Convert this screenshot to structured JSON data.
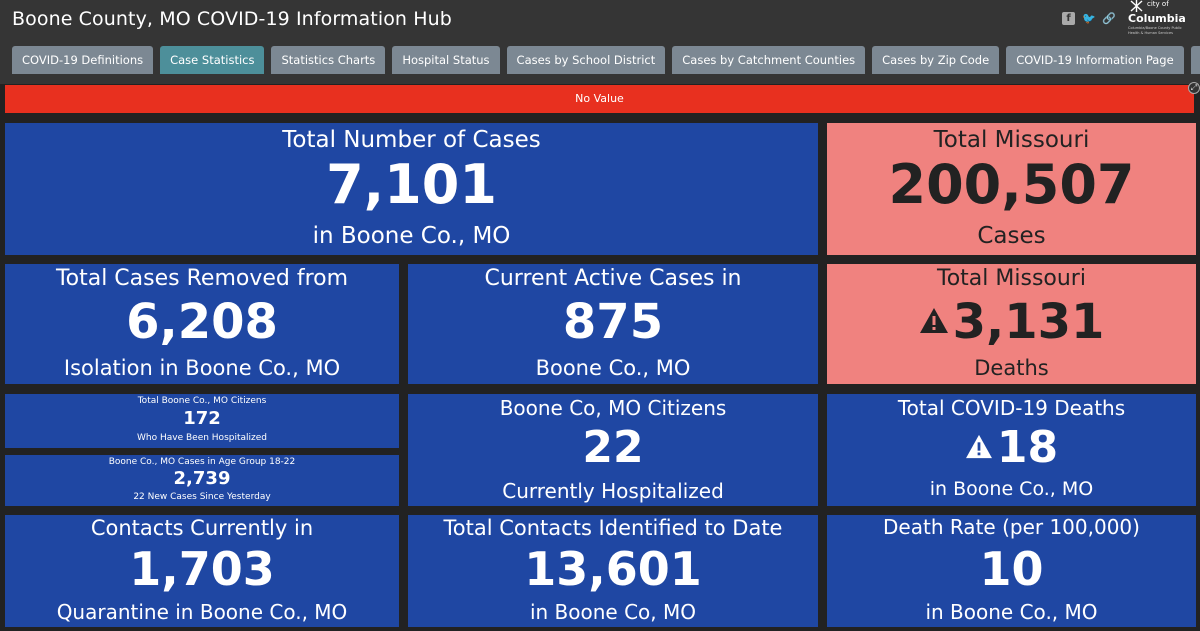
{
  "header": {
    "title": "Boone County, MO COVID-19 Information Hub",
    "social": {
      "facebook": "f",
      "twitter": "🐦",
      "link": "🔗"
    },
    "logo": {
      "city_of": "city of",
      "name": "Columbia",
      "subtitle": "Columbia/Boone County Public Health & Human Services"
    }
  },
  "tabs": [
    {
      "label": "COVID-19 Definitions"
    },
    {
      "label": "Case Statistics"
    },
    {
      "label": "Statistics Charts"
    },
    {
      "label": "Hospital Status"
    },
    {
      "label": "Cases by School District"
    },
    {
      "label": "Cases by Catchment Counties"
    },
    {
      "label": "Cases by Zip Code"
    },
    {
      "label": "COVID-19 Information Page"
    },
    {
      "label": "☰"
    }
  ],
  "alert": {
    "text": "No Value"
  },
  "cards": {
    "total_cases": {
      "top": "Total Number of Cases",
      "value": "7,101",
      "bottom": "in Boone Co., MO"
    },
    "total_missouri_cases": {
      "top": "Total Missouri",
      "value": "200,507",
      "bottom": "Cases"
    },
    "removed": {
      "top": "Total Cases Removed from",
      "value": "6,208",
      "bottom": "Isolation in Boone Co., MO"
    },
    "active": {
      "top": "Current Active Cases in",
      "value": "875",
      "bottom": "Boone Co., MO"
    },
    "missouri_deaths": {
      "top": "Total Missouri",
      "value": "3,131",
      "bottom": "Deaths"
    },
    "hospitalized_total": {
      "top": "Total Boone Co., MO Citizens",
      "value": "172",
      "bottom": "Who Have Been Hospitalized"
    },
    "age_group": {
      "top": "Boone Co., MO Cases in Age Group 18-22",
      "value": "2,739",
      "bottom": "22 New Cases Since Yesterday"
    },
    "current_hospitalized": {
      "top": "Boone Co, MO Citizens",
      "value": "22",
      "bottom": "Currently Hospitalized"
    },
    "covid_deaths": {
      "top": "Total COVID-19 Deaths",
      "value": "18",
      "bottom": "in Boone Co., MO"
    },
    "contacts_current": {
      "top": "Contacts Currently in",
      "value": "1,703",
      "bottom": "Quarantine in Boone Co., MO"
    },
    "contacts_total": {
      "top": "Total Contacts Identified to Date",
      "value": "13,601",
      "bottom": "in Boone Co, MO"
    },
    "death_rate": {
      "top": "Death Rate (per 100,000)",
      "value": "10",
      "bottom": "in Boone Co., MO"
    }
  },
  "colors": {
    "card_blue": "#1f47a3",
    "card_pink": "#f0827f",
    "alert_red": "#e8301f",
    "tab": "#7c8893",
    "tab_active": "#4d8f9a"
  }
}
